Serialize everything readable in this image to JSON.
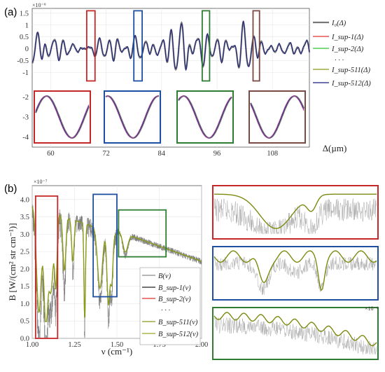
{
  "panel_a": {
    "label": "(a)",
    "exponent": "×10⁻⁹",
    "xlabel": "Δ(µm)",
    "ylabel": "",
    "legend": [
      "I₀(Δ)",
      "I_sup-1(Δ)",
      "I_sup-2(Δ)",
      "· · ·",
      "I_sup-511(Δ)",
      "I_sup-512(Δ)"
    ]
  },
  "panel_b": {
    "label": "(b)",
    "exponent": "×10⁻⁷",
    "exponent_right": "×10⁻⁶",
    "xlabel": "ν (cm⁻¹)",
    "ylabel": "B [W/(cm² str cm⁻¹)]",
    "legend": [
      "B(ν)",
      "B_sup-1(ν)",
      "B_sup-2(ν)",
      "· · ·",
      "B_sup-511(ν)",
      "B_sup-512(ν)"
    ]
  },
  "chart_data": [
    {
      "type": "line",
      "title": "",
      "xlabel": "Δ(µm)",
      "ylabel": "",
      "xlim": [
        56,
        116
      ],
      "ylim": [
        -1.6,
        1.7
      ],
      "x_ticks": [
        60,
        72,
        84,
        96,
        108
      ],
      "y_ticks": [
        -1,
        -0.5,
        0,
        0.5,
        1,
        1.5
      ],
      "series": [
        {
          "name": "I0(Δ)",
          "color": "#777777"
        },
        {
          "name": "Isup-1(Δ)",
          "color": "#e03030"
        },
        {
          "name": "Isup-2(Δ)",
          "color": "#30c030"
        },
        {
          "name": "Isup-511(Δ)",
          "color": "#8a9a1a"
        },
        {
          "name": "Isup-512(Δ)",
          "color": "#1a1f7a"
        }
      ],
      "highlight_boxes": [
        {
          "x": [
            67.8,
            69.6
          ],
          "color": "#c62828"
        },
        {
          "x": [
            78.0,
            79.8
          ],
          "color": "#1e4fa0"
        },
        {
          "x": [
            92.8,
            94.4
          ],
          "color": "#2e7d32"
        },
        {
          "x": [
            103.8,
            105.2
          ],
          "color": "#7a4a44"
        }
      ],
      "inset_ticks": [
        -4,
        -3,
        -2
      ],
      "inset_colors": [
        "#c62828",
        "#1e4fa0",
        "#2e7d32",
        "#7a4a44"
      ]
    },
    {
      "type": "line",
      "title": "",
      "xlabel": "ν (cm⁻¹)",
      "ylabel": "B [W/(cm² str cm⁻¹)]",
      "xlim": [
        1.0,
        2.0
      ],
      "ylim": [
        0,
        4.4
      ],
      "x_ticks": [
        1.0,
        1.25,
        1.5,
        1.75,
        2.0
      ],
      "x_tick_labels": [
        "1.00",
        "1.25",
        "1.50",
        "1.75",
        "2.00"
      ],
      "y_ticks": [
        0,
        0.5,
        1.0,
        1.5,
        2.0,
        2.5,
        3.0,
        3.5,
        4.0
      ],
      "y_tick_labels": [
        "0.0",
        "0.5",
        "1.0",
        "1.5",
        "2.0",
        "2.5",
        "3.0",
        "3.5",
        "4.0"
      ],
      "series": [
        {
          "name": "B(ν)",
          "color": "#8a8a8a"
        },
        {
          "name": "Bsup-1(ν)",
          "color": "#222222"
        },
        {
          "name": "Bsup-2(ν)",
          "color": "#e03030"
        },
        {
          "name": "Bsup-511(ν)",
          "color": "#8a9a1a"
        },
        {
          "name": "Bsup-512(ν)",
          "color": "#9aa62a"
        }
      ],
      "highlight_boxes": [
        {
          "x": [
            1.02,
            1.15
          ],
          "y": [
            0,
            4.1
          ],
          "color": "#c62828"
        },
        {
          "x": [
            1.36,
            1.5
          ],
          "y": [
            1.2,
            4.15
          ],
          "color": "#1e4fa0"
        },
        {
          "x": [
            1.51,
            1.79
          ],
          "y": [
            2.35,
            3.7
          ],
          "color": "#2e7d32"
        }
      ],
      "zoom_colors": [
        "#c62828",
        "#1e4fa0",
        "#2e7d32"
      ]
    }
  ]
}
